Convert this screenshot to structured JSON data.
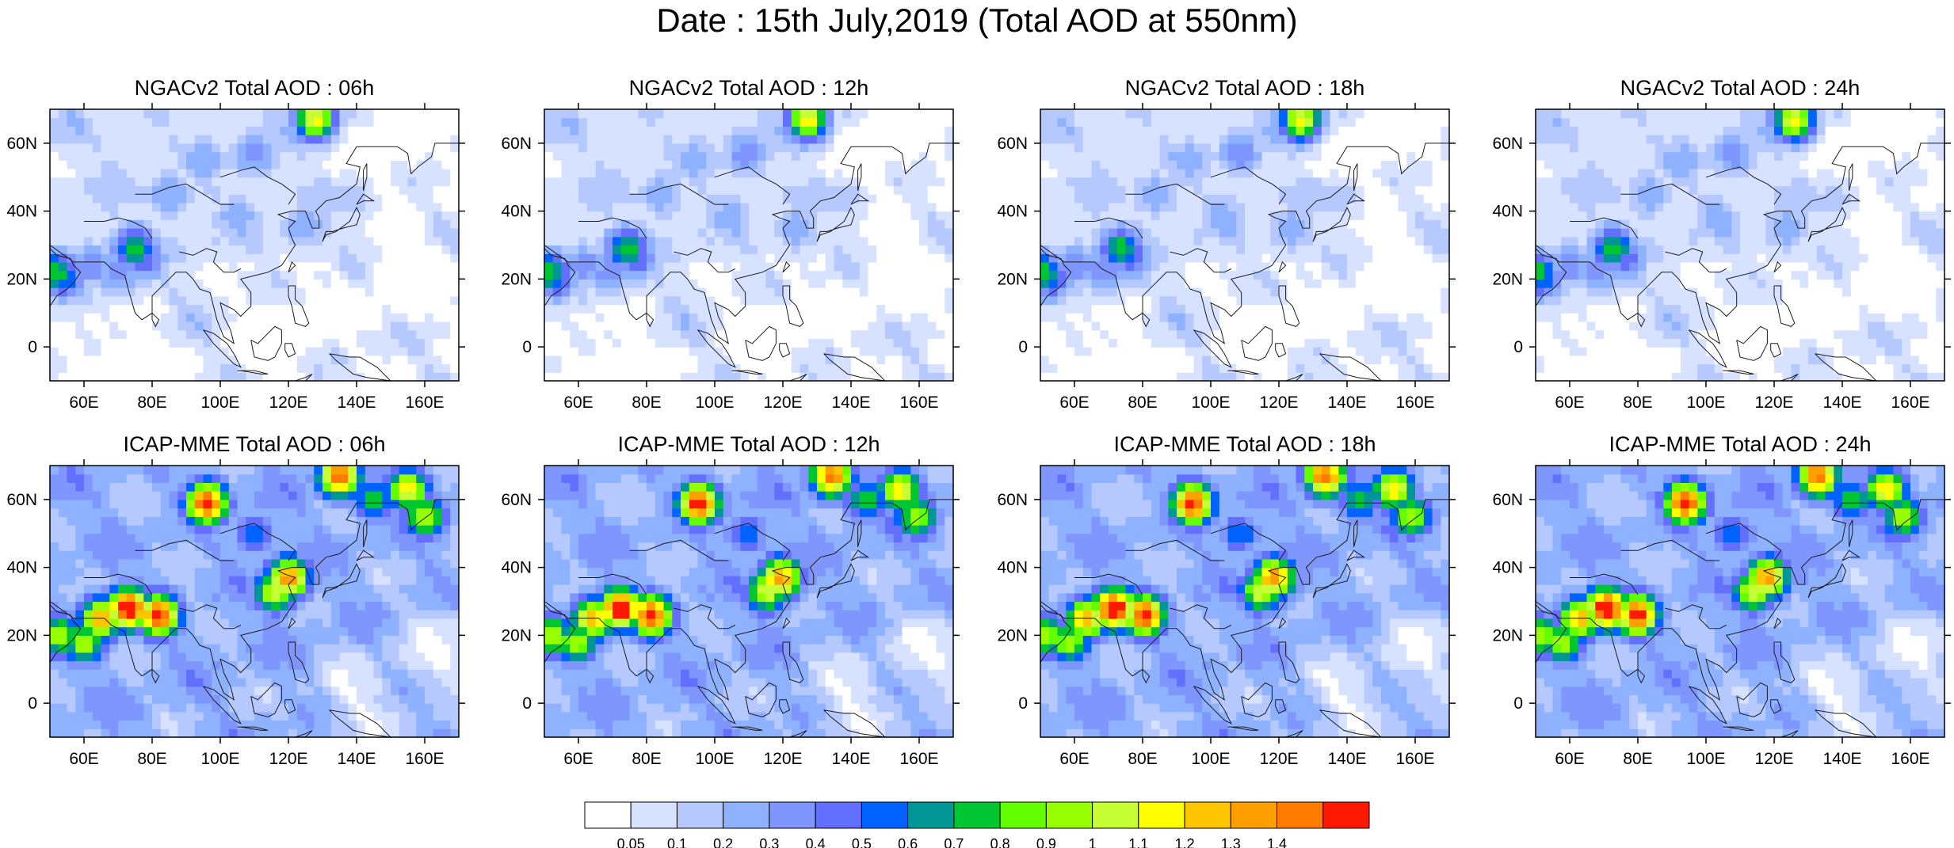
{
  "title": "Date : 15th July,2019 (Total AOD at 550nm)",
  "panels": [
    {
      "id": "ngac-06",
      "title": "NGACv2 Total AOD : 06h",
      "model": "ngac",
      "hour": "06"
    },
    {
      "id": "ngac-12",
      "title": "NGACv2 Total AOD : 12h",
      "model": "ngac",
      "hour": "12"
    },
    {
      "id": "ngac-18",
      "title": "NGACv2 Total AOD : 18h",
      "model": "ngac",
      "hour": "18"
    },
    {
      "id": "ngac-24",
      "title": "NGACv2 Total AOD : 24h",
      "model": "ngac",
      "hour": "24"
    },
    {
      "id": "icap-06",
      "title": "ICAP-MME Total AOD : 06h",
      "model": "icap",
      "hour": "06"
    },
    {
      "id": "icap-12",
      "title": "ICAP-MME Total AOD : 12h",
      "model": "icap",
      "hour": "12"
    },
    {
      "id": "icap-18",
      "title": "ICAP-MME Total AOD : 18h",
      "model": "icap",
      "hour": "18"
    },
    {
      "id": "icap-24",
      "title": "ICAP-MME Total AOD : 24h",
      "model": "icap",
      "hour": "24"
    }
  ],
  "map": {
    "lon_range": [
      50,
      170
    ],
    "lat_range": [
      -10,
      70
    ],
    "lon_ticks": [
      {
        "value": 60,
        "label": "60E"
      },
      {
        "value": 80,
        "label": "80E"
      },
      {
        "value": 100,
        "label": "100E"
      },
      {
        "value": 120,
        "label": "120E"
      },
      {
        "value": 140,
        "label": "140E"
      },
      {
        "value": 160,
        "label": "160E"
      }
    ],
    "lat_ticks": [
      {
        "value": 0,
        "label": "0"
      },
      {
        "value": 20,
        "label": "20N"
      },
      {
        "value": 40,
        "label": "40N"
      },
      {
        "value": 60,
        "label": "60N"
      }
    ]
  },
  "colorbar": {
    "colors": [
      "#ffffff",
      "#d6e2ff",
      "#b5c9ff",
      "#8eb2ff",
      "#7f96ff",
      "#6370ff",
      "#0063ff",
      "#009696",
      "#00c633",
      "#63ff00",
      "#96ff00",
      "#c6ff33",
      "#ffff00",
      "#ffc600",
      "#ffa000",
      "#ff7c00",
      "#ff1900"
    ],
    "labels": [
      "0.05",
      "0.1",
      "0.2",
      "0.3",
      "0.4",
      "0.5",
      "0.6",
      "0.7",
      "0.8",
      "0.9",
      "1",
      "1.1",
      "1.2",
      "1.3",
      "1.4"
    ]
  },
  "fields": {
    "ngac": {
      "background_level": 1,
      "hotspots": [
        {
          "lon": 52,
          "lat": 22,
          "level": 8
        },
        {
          "lon": 54,
          "lat": 20,
          "level": 6
        },
        {
          "lon": 62,
          "lat": 24,
          "level": 4
        },
        {
          "lon": 75,
          "lat": 29,
          "level": 8
        },
        {
          "lon": 78,
          "lat": 26,
          "level": 5
        },
        {
          "lon": 70,
          "lat": 22,
          "level": 4
        },
        {
          "lon": 128,
          "lat": 67,
          "level": 12
        },
        {
          "lon": 110,
          "lat": 57,
          "level": 4
        },
        {
          "lon": 95,
          "lat": 55,
          "level": 3
        },
        {
          "lon": 85,
          "lat": 45,
          "level": 3
        },
        {
          "lon": 105,
          "lat": 38,
          "level": 3
        },
        {
          "lon": 125,
          "lat": 35,
          "level": 3
        },
        {
          "lon": 140,
          "lat": 45,
          "level": 2
        }
      ],
      "clean_areas": [
        {
          "lon": 155,
          "lat": 20
        },
        {
          "lon": 120,
          "lat": 5
        },
        {
          "lon": 70,
          "lat": -5
        },
        {
          "lon": 150,
          "lat": 60
        }
      ]
    },
    "icap": {
      "background_level": 3,
      "hotspots": [
        {
          "lon": 73,
          "lat": 28,
          "level": 16
        },
        {
          "lon": 82,
          "lat": 26,
          "level": 15
        },
        {
          "lon": 65,
          "lat": 25,
          "level": 12
        },
        {
          "lon": 60,
          "lat": 18,
          "level": 9
        },
        {
          "lon": 53,
          "lat": 20,
          "level": 9
        },
        {
          "lon": 120,
          "lat": 37,
          "level": 13
        },
        {
          "lon": 116,
          "lat": 33,
          "level": 10
        },
        {
          "lon": 96,
          "lat": 59,
          "level": 15
        },
        {
          "lon": 135,
          "lat": 67,
          "level": 14
        },
        {
          "lon": 155,
          "lat": 63,
          "level": 11
        },
        {
          "lon": 160,
          "lat": 55,
          "level": 9
        },
        {
          "lon": 145,
          "lat": 60,
          "level": 7
        },
        {
          "lon": 110,
          "lat": 50,
          "level": 5
        }
      ],
      "clean_areas": [
        {
          "lon": 165,
          "lat": 15
        },
        {
          "lon": 140,
          "lat": 0
        }
      ]
    }
  }
}
